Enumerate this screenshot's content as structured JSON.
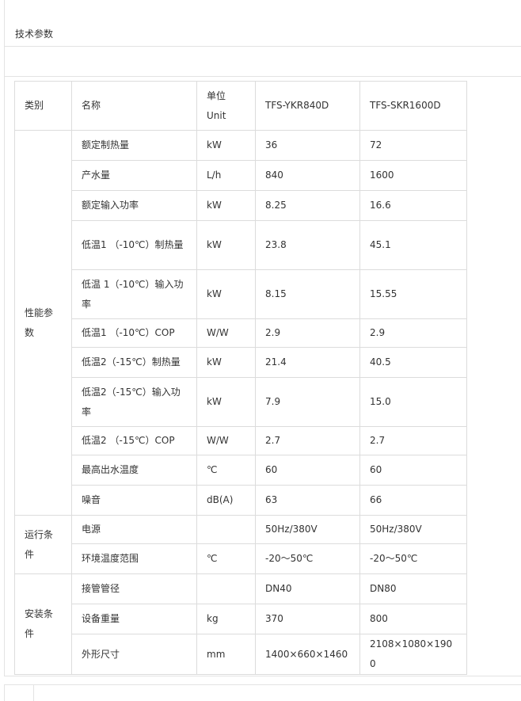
{
  "section_title": "技术参数",
  "table": {
    "headers": {
      "category": "类别",
      "name": "名称",
      "unit_cn": "单位",
      "unit_en": "Unit",
      "model1": "TFS-YKR840D",
      "model2": "TFS-SKR1600D"
    },
    "groups": [
      {
        "category": "性能参数",
        "rows": [
          {
            "name": "额定制热量",
            "unit": "kW",
            "v1": "36",
            "v2": "72"
          },
          {
            "name": "产水量",
            "unit": "L/h",
            "v1": "840",
            "v2": "1600"
          },
          {
            "name": "额定输入功率",
            "unit": "kW",
            "v1": "8.25",
            "v2": "16.6"
          },
          {
            "name": "低温1 （-10℃）制热量",
            "unit": "kW",
            "v1": "23.8",
            "v2": "45.1"
          },
          {
            "name": "低温 1（-10℃）输入功率",
            "unit": "kW",
            "v1": "8.15",
            "v2": "15.55"
          },
          {
            "name": "低温1 （-10℃）COP",
            "unit": "W/W",
            "v1": "2.9",
            "v2": "2.9"
          },
          {
            "name": "低温2（-15℃）制热量",
            "unit": "kW",
            "v1": "21.4",
            "v2": "40.5"
          },
          {
            "name": "低温2（-15℃）输入功率",
            "unit": "kW",
            "v1": "7.9",
            "v2": "15.0"
          },
          {
            "name": "低温2 （-15℃）COP",
            "unit": "W/W",
            "v1": "2.7",
            "v2": "2.7"
          },
          {
            "name": "最高出水温度",
            "unit": "℃",
            "v1": "60",
            "v2": "60"
          },
          {
            "name": "噪音",
            "unit": "dB(A)",
            "v1": "63",
            "v2": "66"
          }
        ]
      },
      {
        "category": "运行条件",
        "rows": [
          {
            "name": "电源",
            "unit": "",
            "v1": "50Hz/380V",
            "v2": "50Hz/380V"
          },
          {
            "name": "环境温度范围",
            "unit": "℃",
            "v1": "-20～50℃",
            "v2": "-20～50℃"
          }
        ]
      },
      {
        "category": "安装条件",
        "rows": [
          {
            "name": "接管管径",
            "unit": "",
            "v1": "DN40",
            "v2": "DN80"
          },
          {
            "name": "设备重量",
            "unit": "kg",
            "v1": "370",
            "v2": "800"
          },
          {
            "name": "外形尺寸",
            "unit": "mm",
            "v1": "1400×660×1460",
            "v2": "2108×1080×1900"
          }
        ]
      }
    ]
  }
}
